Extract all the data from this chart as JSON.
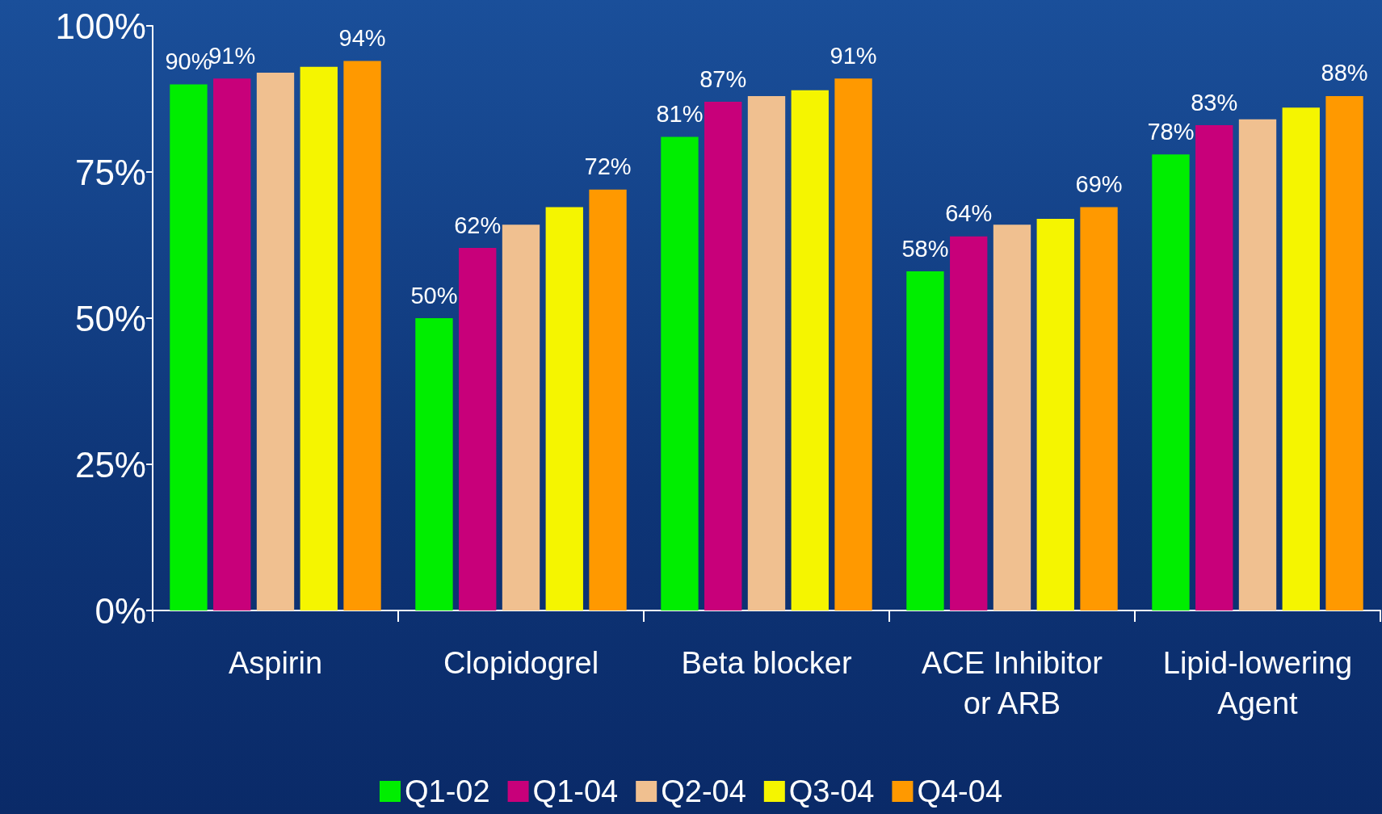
{
  "chart_data": {
    "type": "bar",
    "categories": [
      "Aspirin",
      "Clopidogrel",
      "Beta blocker",
      "ACE Inhibitor\nor ARB",
      "Lipid-lowering\nAgent"
    ],
    "series": [
      {
        "name": "Q1-02",
        "color": "#00ee00",
        "values": [
          90,
          50,
          81,
          58,
          78
        ],
        "value_labels": [
          "90%",
          "50%",
          "81%",
          "58%",
          "78%"
        ]
      },
      {
        "name": "Q1-04",
        "color": "#c8007a",
        "values": [
          91,
          62,
          87,
          64,
          83
        ],
        "value_labels": [
          "91%",
          "62%",
          "87%",
          "64%",
          "83%"
        ]
      },
      {
        "name": "Q2-04",
        "color": "#f0c090",
        "values": [
          92,
          66,
          88,
          66,
          84
        ],
        "value_labels": [
          null,
          null,
          null,
          null,
          null
        ]
      },
      {
        "name": "Q3-04",
        "color": "#f5f500",
        "values": [
          93,
          69,
          89,
          67,
          86
        ],
        "value_labels": [
          null,
          null,
          null,
          null,
          null
        ]
      },
      {
        "name": "Q4-04",
        "color": "#ff9900",
        "values": [
          94,
          72,
          91,
          69,
          88
        ],
        "value_labels": [
          "94%",
          "72%",
          "91%",
          "69%",
          "88%"
        ]
      }
    ],
    "ylim": [
      0,
      100
    ],
    "yticks": [
      {
        "value": 0,
        "label": "0%"
      },
      {
        "value": 25,
        "label": "25%"
      },
      {
        "value": 50,
        "label": "50%"
      },
      {
        "value": 75,
        "label": "75%"
      },
      {
        "value": 100,
        "label": "100%"
      }
    ],
    "grid": false,
    "legend": "bottom"
  }
}
